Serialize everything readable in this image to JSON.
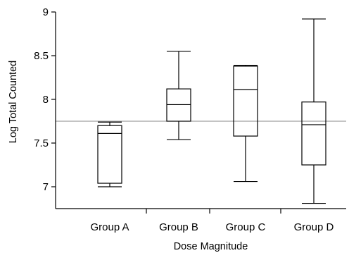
{
  "chart_data": {
    "type": "box",
    "xlabel": "Dose Magnitude",
    "ylabel": "Log Total Counted",
    "ylim": [
      6.75,
      9.0
    ],
    "yticks": [
      "7",
      "7.5",
      "8",
      "8.5",
      "9"
    ],
    "reference_line": 7.75,
    "reference_line_color": "#888888",
    "grid": false,
    "groups": [
      {
        "label": "Group A",
        "min": 7.0,
        "q1": 7.04,
        "median": 7.61,
        "q3": 7.7,
        "max": 7.74
      },
      {
        "label": "Group B",
        "min": 7.54,
        "q1": 7.75,
        "median": 7.94,
        "q3": 8.12,
        "max": 8.55
      },
      {
        "label": "Group C",
        "min": 7.06,
        "q1": 7.58,
        "median": 8.11,
        "q3": 8.38,
        "max": 8.39
      },
      {
        "label": "Group D",
        "min": 6.81,
        "q1": 7.25,
        "median": 7.71,
        "q3": 7.97,
        "max": 8.92
      }
    ]
  }
}
